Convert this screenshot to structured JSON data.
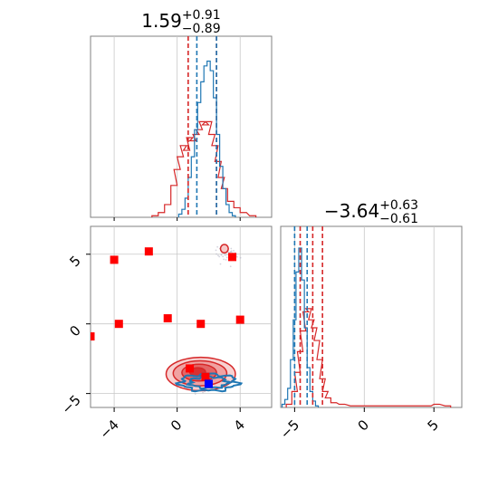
{
  "chart_data": [
    {
      "type": "histogram",
      "panel": "marginal-x",
      "title_value": "1.59",
      "title_plus": "+0.91",
      "title_minus": "−0.89",
      "xlim": [
        -5.5,
        6.0
      ],
      "series": [
        {
          "name": "",
          "color": "#1f77b4",
          "bins": [
            [
              0.2,
              0.02
            ],
            [
              0.4,
              0.05
            ],
            [
              0.6,
              0.12
            ],
            [
              0.8,
              0.25
            ],
            [
              1.0,
              0.38
            ],
            [
              1.2,
              0.55
            ],
            [
              1.4,
              0.72
            ],
            [
              1.6,
              0.85
            ],
            [
              1.8,
              0.95
            ],
            [
              2.0,
              0.98
            ],
            [
              2.2,
              0.92
            ],
            [
              2.4,
              0.75
            ],
            [
              2.6,
              0.52
            ],
            [
              2.8,
              0.32
            ],
            [
              3.0,
              0.18
            ],
            [
              3.2,
              0.08
            ],
            [
              3.4,
              0.03
            ],
            [
              3.6,
              0.01
            ]
          ]
        },
        {
          "name": "",
          "color": "#d62728",
          "bins": [
            [
              -1.4,
              0.01
            ],
            [
              -1.0,
              0.03
            ],
            [
              -0.6,
              0.08
            ],
            [
              -0.2,
              0.2
            ],
            [
              0.0,
              0.3
            ],
            [
              0.2,
              0.38
            ],
            [
              0.4,
              0.45
            ],
            [
              0.6,
              0.42
            ],
            [
              0.8,
              0.5
            ],
            [
              1.0,
              0.48
            ],
            [
              1.2,
              0.52
            ],
            [
              1.4,
              0.55
            ],
            [
              1.6,
              0.6
            ],
            [
              1.8,
              0.58
            ],
            [
              2.0,
              0.6
            ],
            [
              2.2,
              0.52
            ],
            [
              2.4,
              0.45
            ],
            [
              2.6,
              0.35
            ],
            [
              2.8,
              0.25
            ],
            [
              3.0,
              0.18
            ],
            [
              3.4,
              0.1
            ],
            [
              3.8,
              0.06
            ],
            [
              4.2,
              0.03
            ],
            [
              4.8,
              0.01
            ]
          ]
        }
      ],
      "quantile_lines": [
        {
          "x": 0.7,
          "color": "#d62728"
        },
        {
          "x": 1.25,
          "color": "#1f77b4"
        },
        {
          "x": 2.5,
          "color": "#d62728"
        },
        {
          "x": 2.5,
          "color": "#1f77b4"
        }
      ]
    },
    {
      "type": "histogram",
      "panel": "marginal-y",
      "title_value": "−3.64",
      "title_plus": "+0.63",
      "title_minus": "−0.61",
      "xlim": [
        -6.0,
        7.0
      ],
      "xticks": [
        -5,
        0,
        5
      ],
      "xtick_labels": [
        "−5",
        "0",
        "5"
      ],
      "series": [
        {
          "name": "",
          "color": "#1f77b4",
          "bins": [
            [
              -5.8,
              0.02
            ],
            [
              -5.6,
              0.05
            ],
            [
              -5.4,
              0.12
            ],
            [
              -5.2,
              0.3
            ],
            [
              -5.0,
              0.55
            ],
            [
              -4.8,
              0.85
            ],
            [
              -4.6,
              1.0
            ],
            [
              -4.4,
              0.8
            ],
            [
              -4.2,
              0.5
            ],
            [
              -4.0,
              0.25
            ],
            [
              -3.8,
              0.1
            ],
            [
              -3.6,
              0.04
            ],
            [
              -3.4,
              0.01
            ]
          ]
        },
        {
          "name": "",
          "color": "#d62728",
          "bins": [
            [
              -5.4,
              0.02
            ],
            [
              -5.0,
              0.1
            ],
            [
              -4.8,
              0.22
            ],
            [
              -4.6,
              0.35
            ],
            [
              -4.4,
              0.48
            ],
            [
              -4.2,
              0.6
            ],
            [
              -4.0,
              0.62
            ],
            [
              -3.8,
              0.55
            ],
            [
              -3.6,
              0.5
            ],
            [
              -3.4,
              0.42
            ],
            [
              -3.2,
              0.3
            ],
            [
              -3.0,
              0.18
            ],
            [
              -2.8,
              0.1
            ],
            [
              -2.6,
              0.06
            ],
            [
              -2.2,
              0.03
            ],
            [
              -1.6,
              0.02
            ],
            [
              -0.8,
              0.01
            ],
            [
              1.0,
              0.01
            ],
            [
              4.6,
              0.01
            ],
            [
              5.2,
              0.02
            ],
            [
              6.0,
              0.01
            ]
          ]
        }
      ],
      "quantile_lines": [
        {
          "x": -5.0,
          "color": "#1f77b4"
        },
        {
          "x": -4.6,
          "color": "#d62728"
        },
        {
          "x": -4.1,
          "color": "#1f77b4"
        },
        {
          "x": -3.7,
          "color": "#d62728"
        },
        {
          "x": -3.0,
          "color": "#d62728"
        }
      ]
    },
    {
      "type": "scatter",
      "panel": "joint",
      "xlim": [
        -5.5,
        6.0
      ],
      "ylim": [
        -6.0,
        7.0
      ],
      "xticks": [
        -4,
        0,
        4
      ],
      "xtick_labels": [
        "−4",
        "0",
        "4"
      ],
      "yticks": [
        -5,
        0,
        5
      ],
      "ytick_labels": [
        "−5",
        "0",
        "5"
      ],
      "gridlines_x": [
        -4,
        0,
        4
      ],
      "gridlines_y": [
        -5,
        0,
        5
      ],
      "red_markers": [
        {
          "x": -5.5,
          "y": -0.9
        },
        {
          "x": -4.0,
          "y": 4.6
        },
        {
          "x": -3.7,
          "y": 0.0
        },
        {
          "x": -1.8,
          "y": 5.2
        },
        {
          "x": -0.6,
          "y": 0.4
        },
        {
          "x": 1.5,
          "y": 0.0
        },
        {
          "x": 3.5,
          "y": 4.8
        },
        {
          "x": 4.0,
          "y": 0.3
        },
        {
          "x": 0.8,
          "y": -3.2
        },
        {
          "x": 1.8,
          "y": -3.8
        }
      ],
      "blue_markers": [
        {
          "x": 2.0,
          "y": -4.3
        }
      ],
      "red_contours": [
        {
          "cx": 1.5,
          "cy": -3.6,
          "rx": 2.2,
          "ry": 1.2
        },
        {
          "cx": 1.45,
          "cy": -3.55,
          "rx": 1.7,
          "ry": 0.9
        },
        {
          "cx": 1.4,
          "cy": -3.5,
          "rx": 1.1,
          "ry": 0.6
        },
        {
          "cx": 1.3,
          "cy": -3.45,
          "rx": 0.5,
          "ry": 0.3
        }
      ],
      "red_islands": [
        {
          "cx": 3.0,
          "cy": 5.4,
          "rx": 0.25,
          "ry": 0.3
        }
      ],
      "blue_contours": [
        {
          "cx": 2.0,
          "cy": -4.2,
          "rx": 1.8,
          "ry": 0.6
        },
        {
          "cx": 2.0,
          "cy": -4.2,
          "rx": 1.2,
          "ry": 0.4
        }
      ],
      "colors": {
        "red": "#d62728",
        "blue": "#1f77b4",
        "blue_marker": "#0000ff"
      }
    }
  ]
}
